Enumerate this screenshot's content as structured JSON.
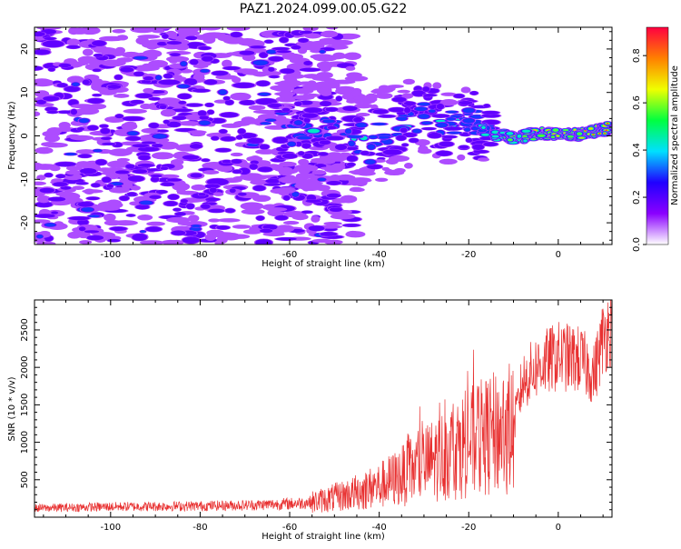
{
  "title": "PAZ1.2024.099.00.05.G22",
  "chart_data": [
    {
      "type": "heatmap",
      "xlabel": "Height of straight line (km)",
      "ylabel": "Frequency (Hz)",
      "xlim": [
        -117,
        12
      ],
      "ylim": [
        -25,
        25
      ],
      "x_ticks": [
        -100,
        -80,
        -60,
        -40,
        -20,
        0
      ],
      "y_ticks": [
        -20,
        -10,
        0,
        10,
        20
      ],
      "colorbar": {
        "label": "Normalized spectral amplitude",
        "range": [
          0,
          0.92
        ],
        "ticks": [
          0.0,
          0.2,
          0.4,
          0.6,
          0.8
        ],
        "colors": [
          "#ffffff",
          "#8a00ff",
          "#2000ff",
          "#00e0ff",
          "#00ff40",
          "#f0ff00",
          "#ff8000",
          "#ff0040"
        ]
      },
      "ridge": [
        [
          -80,
          3.0
        ],
        [
          -70,
          0.0
        ],
        [
          -55,
          1.0
        ],
        [
          -50,
          4.0
        ],
        [
          -45,
          -1.0
        ],
        [
          -40,
          0.0
        ],
        [
          -35,
          2.0
        ],
        [
          -30,
          4.5
        ],
        [
          -25,
          2.0
        ],
        [
          -20,
          3.5
        ],
        [
          -15,
          0.5
        ],
        [
          -10,
          -0.5
        ],
        [
          -5,
          0.5
        ],
        [
          0,
          0.5
        ],
        [
          5,
          0.5
        ],
        [
          12,
          2.0
        ]
      ],
      "grid": false
    },
    {
      "type": "line",
      "xlabel": "Height of straight line (km)",
      "ylabel": "SNR (10 * v/v)",
      "xlim": [
        -117,
        12
      ],
      "ylim": [
        0,
        2900
      ],
      "x_ticks": [
        -100,
        -80,
        -60,
        -40,
        -20,
        0
      ],
      "y_ticks": [
        500,
        1000,
        1500,
        2000,
        2500
      ],
      "color": "#e83030",
      "envelope": [
        [
          -117,
          120
        ],
        [
          -100,
          140
        ],
        [
          -80,
          150
        ],
        [
          -70,
          160
        ],
        [
          -60,
          180
        ],
        [
          -55,
          200
        ],
        [
          -50,
          260
        ],
        [
          -45,
          330
        ],
        [
          -40,
          420
        ],
        [
          -35,
          550
        ],
        [
          -30,
          700
        ],
        [
          -25,
          850
        ],
        [
          -20,
          1000
        ],
        [
          -15,
          1100
        ],
        [
          -10,
          1200
        ],
        [
          -8,
          1800
        ],
        [
          -5,
          2000
        ],
        [
          0,
          2150
        ],
        [
          5,
          2100
        ],
        [
          8,
          1900
        ],
        [
          10,
          2400
        ],
        [
          12,
          2600
        ]
      ],
      "grid": false
    }
  ]
}
